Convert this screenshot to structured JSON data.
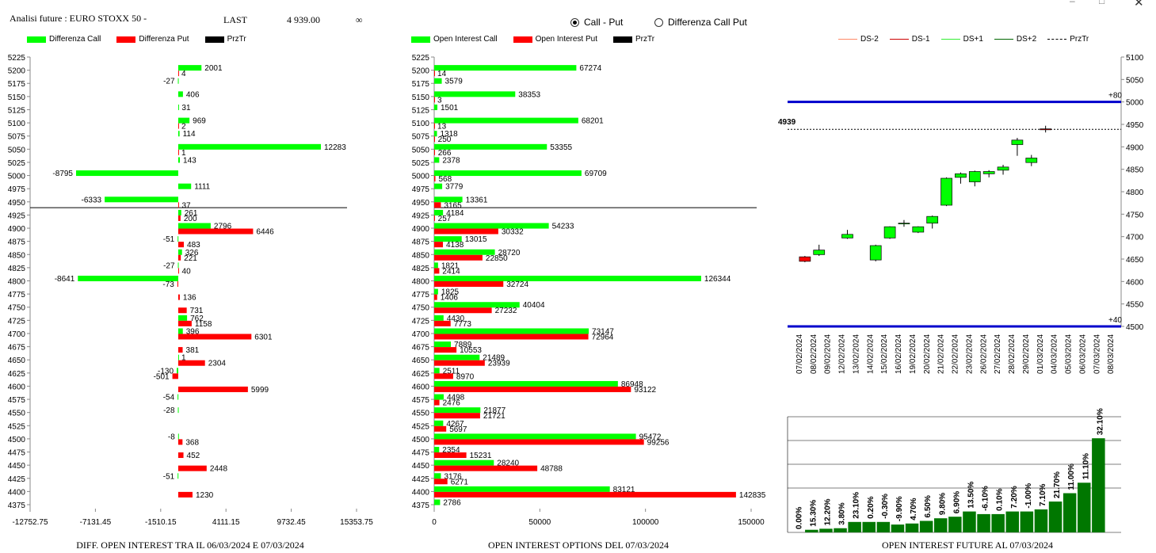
{
  "header": {
    "title": "Analisi future : EURO STOXX 50 -",
    "last_label": "LAST",
    "last_value": "4 939.00",
    "infinity": "∞"
  },
  "mode": {
    "options": [
      "Call - Put",
      "Differenza Call Put"
    ],
    "selected": "Call - Put"
  },
  "colors": {
    "call": "#00ff00",
    "put": "#ff0000",
    "line": "#000000",
    "blue": "#0000cc",
    "dark_green": "#007700"
  },
  "legends": {
    "left": [
      "Differenza Call",
      "Differenza Put",
      "PrzTr"
    ],
    "middle": [
      "Open Interest Call",
      "Open Interest Put",
      "PrzTr"
    ],
    "right": [
      "DS-2",
      "DS-1",
      "DS+1",
      "DS+2",
      "PrzTr"
    ]
  },
  "captions": {
    "left": "DIFF. OPEN INTEREST TRA IL 06/03/2024 E 07/03/2024",
    "middle": "OPEN INTEREST OPTIONS DEL 07/03/2024",
    "right": "OPEN INTEREST FUTURE AL 07/03/2024"
  },
  "chart_data": [
    {
      "type": "bar",
      "orientation": "horizontal",
      "xlim": [
        -12752.75,
        15353.75
      ],
      "x_ticks": [
        "-12752.75",
        "-7131.45",
        "-1510.15",
        "4111.15",
        "9732.45",
        "15353.75"
      ],
      "price_line": 4939,
      "categories": [
        "5225",
        "5200",
        "5175",
        "5150",
        "5125",
        "5100",
        "5075",
        "5050",
        "5025",
        "5000",
        "4975",
        "4950",
        "4925",
        "4900",
        "4875",
        "4850",
        "4825",
        "4800",
        "4775",
        "4750",
        "4725",
        "4700",
        "4675",
        "4650",
        "4625",
        "4600",
        "4575",
        "4550",
        "4525",
        "4500",
        "4475",
        "4450",
        "4425",
        "4400",
        "4375"
      ],
      "series": [
        {
          "name": "Differenza Call",
          "values": [
            null,
            2001,
            -27,
            406,
            31,
            969,
            114,
            12283,
            143,
            -8795,
            1111,
            -6333,
            261,
            2796,
            -51,
            326,
            -27,
            -8641,
            null,
            null,
            762,
            396,
            null,
            1,
            -130,
            null,
            -54,
            -28,
            null,
            -8,
            null,
            null,
            -51,
            null,
            null
          ]
        },
        {
          "name": "Differenza Put",
          "values": [
            null,
            4,
            null,
            null,
            null,
            2,
            null,
            1,
            null,
            null,
            null,
            37,
            200,
            6446,
            483,
            221,
            40,
            -73,
            136,
            731,
            1158,
            6301,
            381,
            2304,
            -501,
            5999,
            null,
            null,
            null,
            368,
            452,
            2448,
            null,
            1230,
            null
          ]
        }
      ]
    },
    {
      "type": "bar",
      "orientation": "horizontal",
      "xlim": [
        0,
        150000
      ],
      "x_ticks": [
        "0",
        "50000",
        "100000",
        "150000"
      ],
      "price_line": 4939,
      "categories": [
        "5225",
        "5200",
        "5175",
        "5150",
        "5125",
        "5100",
        "5075",
        "5050",
        "5025",
        "5000",
        "4975",
        "4950",
        "4925",
        "4900",
        "4875",
        "4850",
        "4825",
        "4800",
        "4775",
        "4750",
        "4725",
        "4700",
        "4675",
        "4650",
        "4625",
        "4600",
        "4575",
        "4550",
        "4525",
        "4500",
        "4475",
        "4450",
        "4425",
        "4400",
        "4375"
      ],
      "series": [
        {
          "name": "Open Interest Call",
          "values": [
            null,
            67274,
            3579,
            38353,
            1501,
            68201,
            1318,
            53355,
            2378,
            69709,
            3779,
            13361,
            4184,
            54233,
            13015,
            28720,
            1821,
            126344,
            1825,
            40404,
            4430,
            73147,
            7889,
            21489,
            2511,
            86948,
            4498,
            21877,
            4267,
            95472,
            2354,
            28240,
            3176,
            83121,
            2786
          ]
        },
        {
          "name": "Open Interest Put",
          "values": [
            null,
            14,
            null,
            3,
            null,
            13,
            250,
            266,
            null,
            568,
            null,
            3165,
            257,
            30332,
            4138,
            22850,
            2414,
            32724,
            1406,
            27232,
            7773,
            72964,
            10553,
            23939,
            8970,
            93122,
            2476,
            21721,
            5697,
            99256,
            15231,
            48788,
            6271,
            142835,
            null
          ]
        }
      ]
    },
    {
      "type": "candlestick",
      "ylim": [
        4500,
        5100
      ],
      "y_ticks": [
        "5100",
        "5050",
        "5000",
        "4950",
        "4900",
        "4850",
        "4800",
        "4750",
        "4700",
        "4650",
        "4600",
        "4550",
        "4500"
      ],
      "dates": [
        "07/02/2024",
        "08/02/2024",
        "09/02/2024",
        "12/02/2024",
        "13/02/2024",
        "14/02/2024",
        "15/02/2024",
        "16/02/2024",
        "19/02/2024",
        "20/02/2024",
        "21/02/2024",
        "22/02/2024",
        "23/02/2024",
        "26/02/2024",
        "27/02/2024",
        "28/02/2024",
        "29/02/2024",
        "01/03/2024",
        "04/03/2024",
        "05/03/2024",
        "06/03/2024",
        "07/03/2024",
        "08/03/2024"
      ],
      "candles": [
        {
          "i": 0,
          "o": 4655,
          "c": 4645,
          "h": 4657,
          "l": 4643
        },
        {
          "i": 1,
          "o": 4660,
          "c": 4670,
          "h": 4682,
          "l": 4657
        },
        {
          "i": 2,
          "o": 4697,
          "c": 4705,
          "h": 4715,
          "l": 4695
        },
        {
          "i": 3,
          "o": 4648,
          "c": 4680,
          "h": 4682,
          "l": 4645
        },
        {
          "i": 4,
          "o": 4697,
          "c": 4722,
          "h": 4723,
          "l": 4695
        },
        {
          "i": 5,
          "o": 4730,
          "c": 4730,
          "h": 4737,
          "l": 4722
        },
        {
          "i": 6,
          "o": 4710,
          "c": 4722,
          "h": 4723,
          "l": 4708
        },
        {
          "i": 7,
          "o": 4730,
          "c": 4745,
          "h": 4747,
          "l": 4718
        },
        {
          "i": 8,
          "o": 4770,
          "c": 4830,
          "h": 4832,
          "l": 4768
        },
        {
          "i": 9,
          "o": 4832,
          "c": 4840,
          "h": 4843,
          "l": 4818
        },
        {
          "i": 10,
          "o": 4822,
          "c": 4845,
          "h": 4847,
          "l": 4812
        },
        {
          "i": 11,
          "o": 4840,
          "c": 4845,
          "h": 4848,
          "l": 4832
        },
        {
          "i": 12,
          "o": 4848,
          "c": 4855,
          "h": 4860,
          "l": 4838
        },
        {
          "i": 13,
          "o": 4905,
          "c": 4915,
          "h": 4920,
          "l": 4880
        },
        {
          "i": 14,
          "o": 4865,
          "c": 4875,
          "h": 4882,
          "l": 4857
        },
        {
          "i": 15,
          "o": 4940,
          "c": 4938,
          "h": 4947,
          "l": 4932
        }
      ],
      "candle_positions": [
        1,
        2,
        4,
        6,
        7,
        8,
        9,
        10,
        11,
        12,
        13,
        14,
        15,
        16,
        17,
        18,
        19,
        20,
        21,
        22,
        22,
        22,
        23
      ],
      "blue_lines": [
        5000,
        4500
      ],
      "blue_labels": [
        "+80",
        "+40"
      ],
      "price_line": 4939,
      "price_label": "4939"
    },
    {
      "type": "bar",
      "values": [
        0.0,
        15.3,
        12.2,
        3.8,
        23.1,
        0.2,
        -0.3,
        -9.9,
        4.7,
        6.5,
        9.8,
        6.9,
        13.5,
        -6.1,
        0.1,
        7.2,
        -1.0,
        7.1,
        21.7,
        11.0,
        11.1,
        32.1
      ],
      "labels": [
        "0.00%",
        "15.30%",
        "12.20%",
        "3.80%",
        "23.10%",
        "0.20%",
        "-0.30%",
        "-9.90%",
        "4.70%",
        "6.50%",
        "9.80%",
        "6.90%",
        "13.50%",
        "-6.10%",
        "0.10%",
        "7.20%",
        "-1.00%",
        "7.10%",
        "21.70%",
        "11.00%",
        "11.10%",
        "32.10%"
      ],
      "heights": [
        0,
        0.5,
        0.7,
        0.8,
        2.0,
        2.0,
        2.0,
        1.5,
        1.7,
        2.2,
        2.7,
        3.0,
        4.0,
        3.5,
        3.5,
        4.0,
        4.0,
        4.4,
        5.9,
        7.5,
        9.5,
        18.0
      ]
    }
  ]
}
